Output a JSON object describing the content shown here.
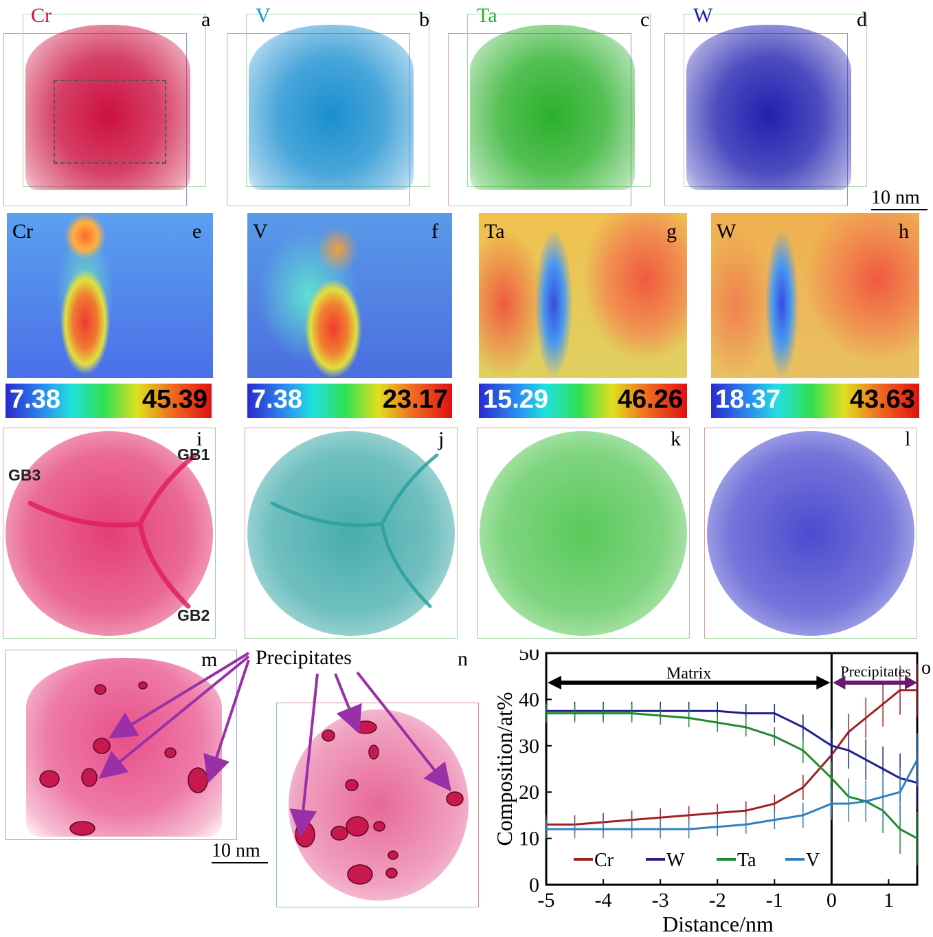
{
  "panels_top": [
    {
      "letter": "a",
      "element": "Cr",
      "color": "#cc1040"
    },
    {
      "letter": "b",
      "element": "V",
      "color": "#1a8fd0"
    },
    {
      "letter": "c",
      "element": "Ta",
      "color": "#2ab02a"
    },
    {
      "letter": "d",
      "element": "W",
      "color": "#2020b0"
    }
  ],
  "scale_top": "10 nm",
  "panels_heat": [
    {
      "letter": "e",
      "element": "Cr",
      "min": "7.38",
      "max": "45.39"
    },
    {
      "letter": "f",
      "element": "V",
      "min": "7.38",
      "max": "23.17"
    },
    {
      "letter": "g",
      "element": "Ta",
      "min": "15.29",
      "max": "46.26"
    },
    {
      "letter": "h",
      "element": "W",
      "min": "18.37",
      "max": "43.63"
    }
  ],
  "panels_circle": [
    {
      "letter": "i",
      "color": "#e02060"
    },
    {
      "letter": "j",
      "color": "#2aa0a0"
    },
    {
      "letter": "k",
      "color": "#40c040"
    },
    {
      "letter": "l",
      "color": "#3030c8"
    }
  ],
  "gb_labels": [
    "GB1",
    "GB3",
    "GB2"
  ],
  "panel_m": {
    "letter": "m",
    "scale": "10 nm"
  },
  "panel_n": {
    "letter": "n"
  },
  "precipitates_label": "Precipitates",
  "panel_o": {
    "letter": "o"
  },
  "chart_data": {
    "type": "line",
    "xlabel": "Distance/nm",
    "ylabel": "Composition/at%",
    "xlim": [
      -5,
      1.5
    ],
    "ylim": [
      0,
      50
    ],
    "xticks": [
      "-5",
      "-4",
      "-3",
      "-2",
      "-1",
      "0",
      "1"
    ],
    "yticks": [
      "0",
      "10",
      "20",
      "30",
      "40",
      "50"
    ],
    "annotations": {
      "matrix": "Matrix",
      "precipitates": "Precipitates",
      "interface_x": 0
    },
    "legend": [
      "Cr",
      "W",
      "Ta",
      "V"
    ],
    "series": [
      {
        "name": "Cr",
        "color": "#a02020",
        "x": [
          -5,
          -4.5,
          -4,
          -3.5,
          -3,
          -2.5,
          -2,
          -1.5,
          -1,
          -0.5,
          0,
          0.3,
          0.6,
          0.9,
          1.2,
          1.5
        ],
        "y": [
          13,
          13,
          13.5,
          14,
          14.5,
          15,
          15.5,
          16,
          17.5,
          21,
          28,
          33,
          36,
          39,
          42,
          42
        ]
      },
      {
        "name": "W",
        "color": "#20208a",
        "x": [
          -5,
          -4.5,
          -4,
          -3.5,
          -3,
          -2.5,
          -2,
          -1.5,
          -1,
          -0.5,
          0,
          0.3,
          0.6,
          0.9,
          1.2,
          1.5
        ],
        "y": [
          37.5,
          37.5,
          37.5,
          37.5,
          37.5,
          37.5,
          37.5,
          37,
          37,
          34,
          30,
          29,
          27,
          25,
          23,
          22
        ]
      },
      {
        "name": "Ta",
        "color": "#208a30",
        "x": [
          -5,
          -4.5,
          -4,
          -3.5,
          -3,
          -2.5,
          -2,
          -1.5,
          -1,
          -0.5,
          0,
          0.3,
          0.6,
          0.9,
          1.2,
          1.5
        ],
        "y": [
          37,
          37,
          37,
          37,
          36.5,
          36,
          35,
          34,
          32,
          29,
          23,
          19,
          18,
          16,
          12,
          10
        ]
      },
      {
        "name": "V",
        "color": "#3080c0",
        "x": [
          -5,
          -4.5,
          -4,
          -3.5,
          -3,
          -2.5,
          -2,
          -1.5,
          -1,
          -0.5,
          0,
          0.3,
          0.6,
          0.9,
          1.2,
          1.5
        ],
        "y": [
          12,
          12,
          12,
          12,
          12,
          12,
          12.5,
          13,
          14,
          15,
          17.5,
          17.5,
          18,
          19,
          20,
          27
        ]
      }
    ]
  }
}
